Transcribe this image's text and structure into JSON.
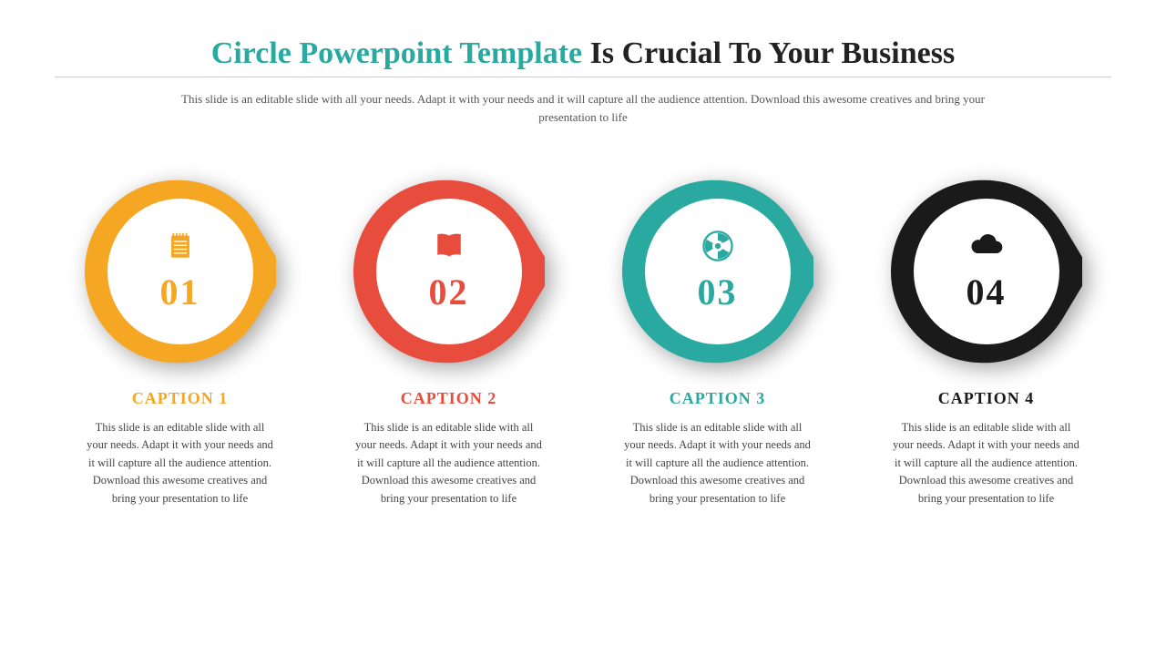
{
  "title": {
    "accent_text": "Circle Powerpoint Template",
    "rest_text": " Is Crucial To Your Business",
    "accent_color": "#2aa9a1",
    "rest_color": "#222222",
    "fontsize": 34
  },
  "subtitle": {
    "text": "This slide is an editable slide with all your needs. Adapt it with your needs and it will capture all the audience attention. Download this awesome creatives and bring your presentation to life",
    "color": "#555555",
    "fontsize": 13
  },
  "items": [
    {
      "number": "01",
      "caption": "CAPTION 1",
      "description": "This slide is an editable slide with all your needs. Adapt it with your needs and it will capture all the audience attention. Download this awesome creatives and bring your presentation to life",
      "color": "#f5a623",
      "icon": "notepad"
    },
    {
      "number": "02",
      "caption": "CAPTION 2",
      "description": "This slide is an editable slide with all your needs. Adapt it with your needs and it will capture all the audience attention. Download this awesome creatives and bring your presentation to life",
      "color": "#e84c3d",
      "icon": "book"
    },
    {
      "number": "03",
      "caption": "CAPTION 3",
      "description": "This slide is an editable slide with all your needs. Adapt it with your needs and it will capture all the audience attention. Download this awesome creatives and bring your presentation to life",
      "color": "#2aa9a1",
      "icon": "radiation"
    },
    {
      "number": "04",
      "caption": "CAPTION 4",
      "description": "This slide is an editable slide with all your needs. Adapt it with your needs and it will capture all the audience attention. Download this awesome creatives and bring your presentation to life",
      "color": "#1a1a1a",
      "icon": "cloud"
    }
  ],
  "layout": {
    "circle_outer_diameter": 210,
    "circle_inner_diameter": 160,
    "number_fontsize": 40,
    "caption_fontsize": 18,
    "desc_fontsize": 12.5,
    "icon_size": 34,
    "background": "#ffffff"
  }
}
